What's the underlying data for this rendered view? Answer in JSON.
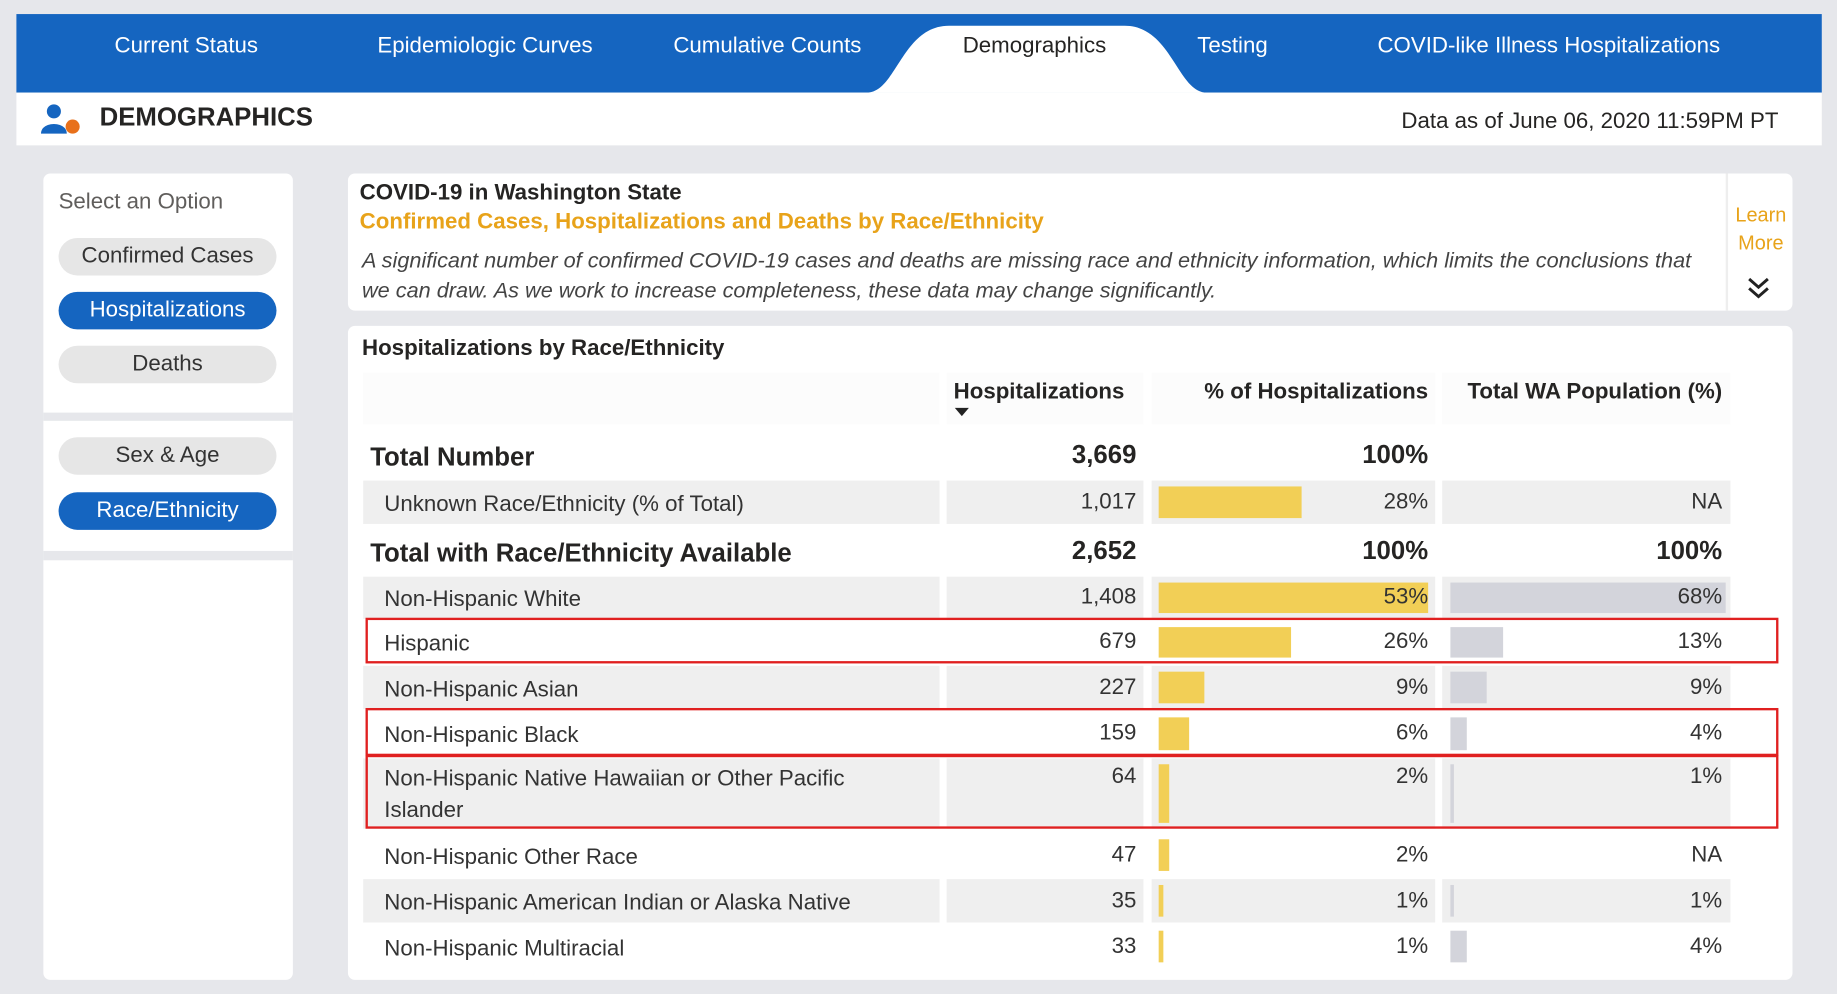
{
  "nav": {
    "tabs": [
      "Current Status",
      "Epidemiologic Curves",
      "Cumulative Counts",
      "Demographics",
      "Testing",
      "COVID-like Illness Hospitalizations"
    ],
    "active": 3
  },
  "header": {
    "title": "DEMOGRAPHICS",
    "as_of": "Data as of June 06, 2020 11:59PM PT"
  },
  "sidebar": {
    "prompt": "Select an Option",
    "groups": [
      [
        {
          "label": "Confirmed Cases",
          "selected": false
        },
        {
          "label": "Hospitalizations",
          "selected": true
        },
        {
          "label": "Deaths",
          "selected": false
        }
      ],
      [
        {
          "label": "Sex & Age",
          "selected": false
        },
        {
          "label": "Race/Ethnicity",
          "selected": true
        }
      ]
    ]
  },
  "info": {
    "title": "COVID-19 in Washington State",
    "subtitle": "Confirmed Cases, Hospitalizations and Deaths by Race/Ethnicity",
    "text": "A significant number of confirmed COVID-19 cases and deaths are missing race and ethnicity information, which limits the conclusions that we can draw. As we work to increase completeness, these data may change significantly.",
    "learn_more": "Learn More"
  },
  "table": {
    "title": "Hospitalizations by Race/Ethnicity",
    "columns": [
      "Hospitalizations",
      "% of Hospitalizations",
      "Total WA Population (%)"
    ],
    "sections": [
      {
        "total": {
          "label": "Total Number",
          "count": "3,669",
          "pct": {
            "value": 100,
            "label": "100%"
          }
        },
        "rows": [
          {
            "label": "Unknown Race/Ethnicity (% of Total)",
            "count": "1,017",
            "pct": {
              "value": 28,
              "label": "28%"
            },
            "pop": {
              "label": "NA"
            },
            "highlighted": false
          }
        ]
      },
      {
        "total": {
          "label": "Total with Race/Ethnicity Available",
          "count": "2,652",
          "pct": {
            "value": 100,
            "label": "100%"
          },
          "pop": {
            "value": 100,
            "label": "100%"
          }
        },
        "rows": [
          {
            "label": "Non-Hispanic White",
            "count": "1,408",
            "pct": {
              "value": 53,
              "label": "53%"
            },
            "pop": {
              "value": 68,
              "label": "68%"
            },
            "highlighted": false
          },
          {
            "label": "Hispanic",
            "count": "679",
            "pct": {
              "value": 26,
              "label": "26%"
            },
            "pop": {
              "value": 13,
              "label": "13%"
            },
            "highlighted": true
          },
          {
            "label": "Non-Hispanic Asian",
            "count": "227",
            "pct": {
              "value": 9,
              "label": "9%"
            },
            "pop": {
              "value": 9,
              "label": "9%"
            },
            "highlighted": false
          },
          {
            "label": "Non-Hispanic Black",
            "count": "159",
            "pct": {
              "value": 6,
              "label": "6%"
            },
            "pop": {
              "value": 4,
              "label": "4%"
            },
            "highlighted": true
          },
          {
            "label": "Non-Hispanic Native Hawaiian or Other Pacific Islander",
            "count": "64",
            "pct": {
              "value": 2,
              "label": "2%"
            },
            "pop": {
              "value": 1,
              "label": "1%"
            },
            "highlighted": true
          },
          {
            "label": "Non-Hispanic Other Race",
            "count": "47",
            "pct": {
              "value": 2,
              "label": "2%"
            },
            "pop": {
              "label": "NA"
            },
            "highlighted": false
          },
          {
            "label": "Non-Hispanic American Indian or Alaska Native",
            "count": "35",
            "pct": {
              "value": 1,
              "label": "1%"
            },
            "pop": {
              "value": 1,
              "label": "1%"
            },
            "highlighted": false
          },
          {
            "label": "Non-Hispanic Multiracial",
            "count": "33",
            "pct": {
              "value": 1,
              "label": "1%"
            },
            "pop": {
              "value": 4,
              "label": "4%"
            },
            "highlighted": false
          }
        ]
      }
    ]
  }
}
